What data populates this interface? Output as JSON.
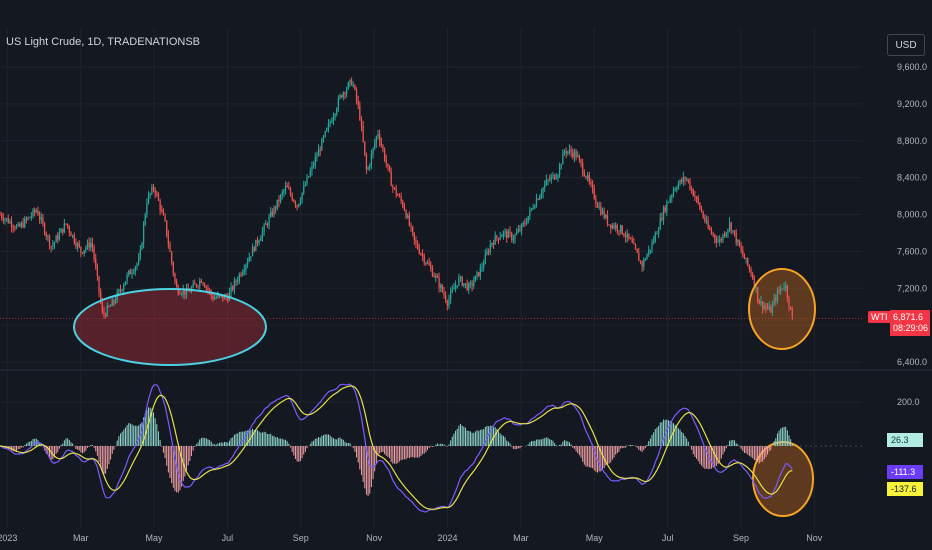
{
  "chart_data": [
    {
      "type": "candlestick",
      "title": "US Light Crude, 1D, TRADENATIONSB",
      "currency": "USD",
      "symbol": "WTI",
      "last_price": "6,871.6",
      "countdown": "08:29:06",
      "ylim": [
        6300,
        9800
      ],
      "y_ticks": [
        "9,600.0",
        "9,200.0",
        "8,800.0",
        "8,400.0",
        "8,000.0",
        "7,600.0",
        "7,200.0",
        "6,800.0",
        "6,400.0"
      ],
      "y_tick_values": [
        9600,
        9200,
        8800,
        8400,
        8000,
        7600,
        7200,
        6800,
        6400
      ],
      "x_ticks": [
        "2023",
        "Mar",
        "May",
        "Jul",
        "Sep",
        "Nov",
        "2024",
        "Mar",
        "May",
        "Jul",
        "Sep",
        "Nov"
      ],
      "x_tick_months": [
        0,
        2,
        4,
        6,
        8,
        10,
        12,
        14,
        16,
        18,
        20,
        22
      ],
      "x_range_months": [
        -0.2,
        23.3
      ],
      "approx_closes": [
        [
          -0.2,
          8000
        ],
        [
          0.3,
          7850
        ],
        [
          0.8,
          8050
        ],
        [
          1.2,
          7650
        ],
        [
          1.6,
          7900
        ],
        [
          2.0,
          7600
        ],
        [
          2.3,
          7700
        ],
        [
          2.6,
          6900
        ],
        [
          2.9,
          7050
        ],
        [
          3.3,
          7350
        ],
        [
          3.6,
          7500
        ],
        [
          3.8,
          8150
        ],
        [
          4.0,
          8300
        ],
        [
          4.3,
          7900
        ],
        [
          4.6,
          7200
        ],
        [
          4.9,
          7150
        ],
        [
          5.3,
          7300
        ],
        [
          5.6,
          7100
        ],
        [
          6.0,
          7100
        ],
        [
          6.4,
          7400
        ],
        [
          6.8,
          7700
        ],
        [
          7.2,
          8000
        ],
        [
          7.6,
          8300
        ],
        [
          7.9,
          8100
        ],
        [
          8.3,
          8500
        ],
        [
          8.7,
          8900
        ],
        [
          9.1,
          9300
        ],
        [
          9.4,
          9450
        ],
        [
          9.6,
          9100
        ],
        [
          9.8,
          8450
        ],
        [
          10.1,
          8900
        ],
        [
          10.5,
          8300
        ],
        [
          10.8,
          8100
        ],
        [
          11.1,
          7700
        ],
        [
          11.4,
          7500
        ],
        [
          11.7,
          7300
        ],
        [
          12.0,
          7050
        ],
        [
          12.3,
          7300
        ],
        [
          12.6,
          7200
        ],
        [
          12.9,
          7400
        ],
        [
          13.2,
          7700
        ],
        [
          13.5,
          7800
        ],
        [
          13.8,
          7750
        ],
        [
          14.1,
          7900
        ],
        [
          14.4,
          8150
        ],
        [
          14.7,
          8350
        ],
        [
          15.0,
          8450
        ],
        [
          15.2,
          8700
        ],
        [
          15.5,
          8650
        ],
        [
          15.8,
          8400
        ],
        [
          16.1,
          8100
        ],
        [
          16.4,
          7900
        ],
        [
          16.7,
          7850
        ],
        [
          17.0,
          7700
        ],
        [
          17.3,
          7450
        ],
        [
          17.6,
          7700
        ],
        [
          17.9,
          8050
        ],
        [
          18.2,
          8300
        ],
        [
          18.5,
          8400
        ],
        [
          18.8,
          8150
        ],
        [
          19.1,
          7850
        ],
        [
          19.4,
          7700
        ],
        [
          19.7,
          7900
        ],
        [
          20.0,
          7600
        ],
        [
          20.3,
          7350
        ],
        [
          20.5,
          7050
        ],
        [
          20.8,
          6950
        ],
        [
          21.0,
          7150
        ],
        [
          21.2,
          7250
        ],
        [
          21.4,
          6870
        ]
      ]
    },
    {
      "type": "oscillator",
      "y_ticks": [
        "200.0"
      ],
      "y_tick_values": [
        200
      ],
      "ylim": [
        -320,
        320
      ],
      "readouts": [
        "26.3",
        "-111.3",
        "-137.6"
      ],
      "colors": {
        "histogram_up": "#26a69a",
        "histogram_down": "#ef5350",
        "fast_line": "#7b5cff",
        "slow_line": "#e6e04a"
      }
    }
  ],
  "annotations": [
    {
      "shape": "ellipse",
      "color": "#4dd0e1",
      "fill": "#8b2a35",
      "label": "support-zone"
    },
    {
      "shape": "ellipse",
      "color": "#f7a325",
      "fill": "#b3621c",
      "label": "current-price-zone"
    },
    {
      "shape": "ellipse",
      "color": "#f7a325",
      "fill": "#b3621c",
      "label": "oscillator-zone"
    }
  ],
  "colors": {
    "up": "#26a69a",
    "down": "#ef5350",
    "background": "#141821",
    "grid": "#1f232d",
    "price_tag": "#f23645"
  }
}
